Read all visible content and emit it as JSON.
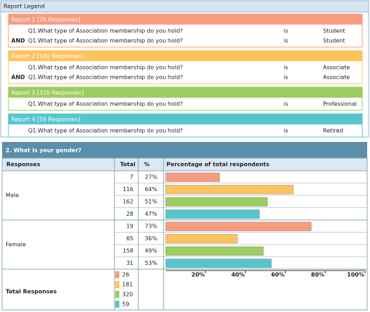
{
  "legend": {
    "title": "Report Legend",
    "reports": [
      {
        "label": "Report 1 [26 Responses]",
        "color": "#f89c80",
        "conditions": [
          {
            "question": "Q1.What type of Association membership do you hold?",
            "operator": "is",
            "answer": "Student"
          },
          {
            "connector": "AND",
            "question": "Q1.What type of Association membership do you hold?",
            "operator": "is",
            "answer": "Student"
          }
        ]
      },
      {
        "label": "Report 2 [181 Responses]",
        "color": "#fdc45e",
        "conditions": [
          {
            "question": "Q1.What type of Association membership do you hold?",
            "operator": "is",
            "answer": "Associate"
          },
          {
            "connector": "AND",
            "question": "Q1.What type of Association membership do you hold?",
            "operator": "is",
            "answer": "Associate"
          }
        ]
      },
      {
        "label": "Report 3 [320 Responses]",
        "color": "#9ccd5e",
        "conditions": [
          {
            "question": "Q1.What type of Association membership do you hold?",
            "operator": "is",
            "answer": "Professional"
          }
        ]
      },
      {
        "label": "Report 4 [59 Responses]",
        "color": "#55c6cf",
        "conditions": [
          {
            "question": "Q1.What type of Association membership do you hold?",
            "operator": "is",
            "answer": "Retired"
          }
        ]
      }
    ]
  },
  "table": {
    "title": "2. What is your gender?",
    "headers": [
      "Responses",
      "Total",
      "%",
      "Percentage of total respondents"
    ],
    "groups": [
      {
        "label": "Male",
        "rows": [
          {
            "total": 7,
            "percent": 27,
            "percent_label": "27%"
          },
          {
            "total": 116,
            "percent": 64,
            "percent_label": "64%"
          },
          {
            "total": 162,
            "percent": 51,
            "percent_label": "51%"
          },
          {
            "total": 28,
            "percent": 47,
            "percent_label": "47%"
          }
        ]
      },
      {
        "label": "Female",
        "rows": [
          {
            "total": 19,
            "percent": 73,
            "percent_label": "73%"
          },
          {
            "total": 65,
            "percent": 36,
            "percent_label": "36%"
          },
          {
            "total": 158,
            "percent": 49,
            "percent_label": "49%"
          },
          {
            "total": 31,
            "percent": 53,
            "percent_label": "53%"
          }
        ]
      }
    ],
    "total_label": "Total Responses",
    "totals": [
      26,
      181,
      320,
      59
    ],
    "xlim": [
      0,
      100
    ],
    "xticks": [
      {
        "value": 20,
        "label": "20%"
      },
      {
        "value": 40,
        "label": "40%"
      },
      {
        "value": 60,
        "label": "60%"
      },
      {
        "value": 80,
        "label": "80%"
      },
      {
        "value": 100,
        "label": "100%"
      }
    ]
  }
}
